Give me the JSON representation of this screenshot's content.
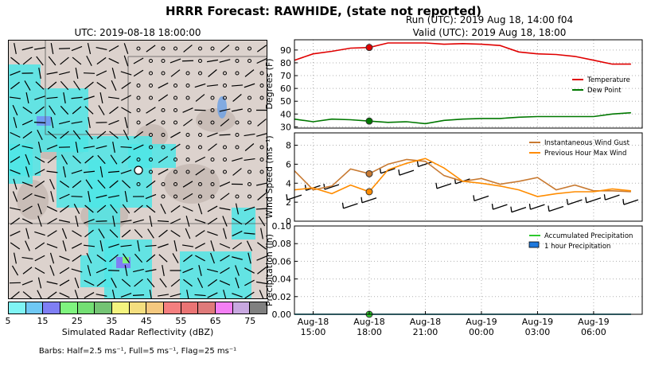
{
  "main_title": "HRRR Forecast: RAWHIDE, (state not reported)",
  "map_panel": {
    "title": "UTC: 2019-08-18 18:00:00",
    "colorbar": {
      "label": "Simulated Radar Reflectivity (dBZ)",
      "ticks": [
        "5",
        "15",
        "25",
        "35",
        "45",
        "55",
        "65",
        "75"
      ],
      "colors": [
        "#7ff4f4",
        "#6fc8f4",
        "#7f7ff4",
        "#7ff47f",
        "#74df74",
        "#74c474",
        "#f4f47f",
        "#f4de7f",
        "#f4c87f",
        "#f47f7f",
        "#ea7474",
        "#df7a7a",
        "#f47ff4",
        "#c8a8e0",
        "#808080"
      ]
    },
    "barb_note": "Barbs: Half=2.5 ms⁻¹, Full=5 ms⁻¹, Flag=25 ms⁻¹"
  },
  "run_label": "Run (UTC): 2019 Aug 18, 14:00 f04",
  "valid_label": "Valid (UTC): 2019 Aug 18, 18:00",
  "chart_data": [
    {
      "type": "line",
      "ylabel": "Degrees (F)",
      "ylim": [
        29,
        98
      ],
      "yticks": [
        30,
        40,
        50,
        60,
        70,
        80,
        90
      ],
      "grid": true,
      "legend_position": "right",
      "x": [
        14,
        15,
        16,
        17,
        18,
        19,
        20,
        21,
        22,
        23,
        24,
        25,
        26,
        27,
        28,
        29,
        30,
        31,
        32
      ],
      "series": [
        {
          "name": "Temperature",
          "color": "#e00000",
          "values": [
            82,
            87,
            89,
            91.5,
            92,
            95.5,
            95.5,
            95.5,
            94.5,
            95,
            94.5,
            93.5,
            88.5,
            87,
            86.5,
            85,
            82,
            79,
            79
          ]
        },
        {
          "name": "Dew Point",
          "color": "#007800",
          "values": [
            36,
            34,
            36,
            35.5,
            34.5,
            33.5,
            34,
            32.5,
            35,
            36,
            36.5,
            36.5,
            37.5,
            38,
            38,
            38,
            38,
            40,
            41
          ]
        }
      ],
      "marker": {
        "x": 18,
        "values": [
          92,
          34.5
        ]
      }
    },
    {
      "type": "line",
      "ylabel": "Wind Speed (ms⁻¹)",
      "ylim": [
        0,
        9.3
      ],
      "yticks": [
        0,
        2,
        4,
        6,
        8
      ],
      "grid": true,
      "legend_position": "top-right",
      "x": [
        14,
        15,
        16,
        17,
        18,
        19,
        20,
        21,
        22,
        23,
        24,
        25,
        26,
        27,
        28,
        29,
        30,
        31,
        32
      ],
      "series": [
        {
          "name": "Instantaneous Wind Gust",
          "color": "#c87a32",
          "values": [
            5.3,
            3.3,
            3.7,
            5.5,
            5,
            6,
            6.5,
            6.3,
            4.8,
            4.2,
            4.5,
            3.9,
            4.2,
            4.6,
            3.3,
            3.8,
            3.2,
            3.2,
            3.1
          ]
        },
        {
          "name": "Previous Hour Max Wind",
          "color": "#ff8c00",
          "values": [
            3.3,
            3.5,
            2.9,
            3.8,
            3.1,
            5.4,
            6.1,
            6.6,
            5.6,
            4.2,
            4,
            3.7,
            3.3,
            2.6,
            2.9,
            3.1,
            3.1,
            3.4,
            3.2
          ]
        }
      ],
      "marker": {
        "x": 18,
        "values": [
          5,
          3.1
        ]
      },
      "barbs": [
        {
          "x": 14,
          "y": 2.5
        },
        {
          "x": 15,
          "y": 3.5
        },
        {
          "x": 16,
          "y": 3.6
        },
        {
          "x": 17,
          "y": 1.6
        },
        {
          "x": 18,
          "y": 2.2
        },
        {
          "x": 19,
          "y": 5.3
        },
        {
          "x": 20,
          "y": 5.1
        },
        {
          "x": 21,
          "y": 6.0
        },
        {
          "x": 22,
          "y": 3.7
        },
        {
          "x": 23,
          "y": 4.2
        },
        {
          "x": 24,
          "y": 2.4
        },
        {
          "x": 25,
          "y": 1.5
        },
        {
          "x": 26,
          "y": 1.2
        },
        {
          "x": 27,
          "y": 1.5
        },
        {
          "x": 28,
          "y": 1.3
        },
        {
          "x": 29,
          "y": 2.0
        },
        {
          "x": 30,
          "y": 2.2
        },
        {
          "x": 31,
          "y": 2.5
        },
        {
          "x": 32,
          "y": 2.0
        }
      ]
    },
    {
      "type": "line",
      "ylabel": "Precipitation (in)",
      "ylim": [
        0,
        0.1
      ],
      "yticks": [
        "0.00",
        "0.02",
        "0.04",
        "0.06",
        "0.08",
        "0.10"
      ],
      "grid": true,
      "legend_position": "top-right",
      "x": [
        14,
        15,
        16,
        17,
        18,
        19,
        20,
        21,
        22,
        23,
        24,
        25,
        26,
        27,
        28,
        29,
        30,
        31,
        32
      ],
      "series": [
        {
          "name": "Accumulated Precipitation",
          "color": "#2ec82e",
          "values": [
            0,
            0,
            0,
            0,
            0,
            0,
            0,
            0,
            0,
            0,
            0,
            0,
            0,
            0,
            0,
            0,
            0,
            0,
            0
          ]
        },
        {
          "name": "1 hour Precipitation",
          "color": "#1e78dc",
          "values": [
            0,
            0,
            0,
            0,
            0,
            0,
            0,
            0,
            0,
            0,
            0,
            0,
            0,
            0,
            0,
            0,
            0,
            0,
            0
          ]
        }
      ],
      "marker": {
        "x": 18,
        "values": [
          0
        ]
      },
      "xticks": [
        {
          "x": 15,
          "line1": "Aug-18",
          "line2": "15:00"
        },
        {
          "x": 18,
          "line1": "Aug-18",
          "line2": "18:00"
        },
        {
          "x": 21,
          "line1": "Aug-18",
          "line2": "21:00"
        },
        {
          "x": 24,
          "line1": "Aug-19",
          "line2": "00:00"
        },
        {
          "x": 27,
          "line1": "Aug-19",
          "line2": "03:00"
        },
        {
          "x": 30,
          "line1": "Aug-19",
          "line2": "06:00"
        }
      ]
    }
  ]
}
